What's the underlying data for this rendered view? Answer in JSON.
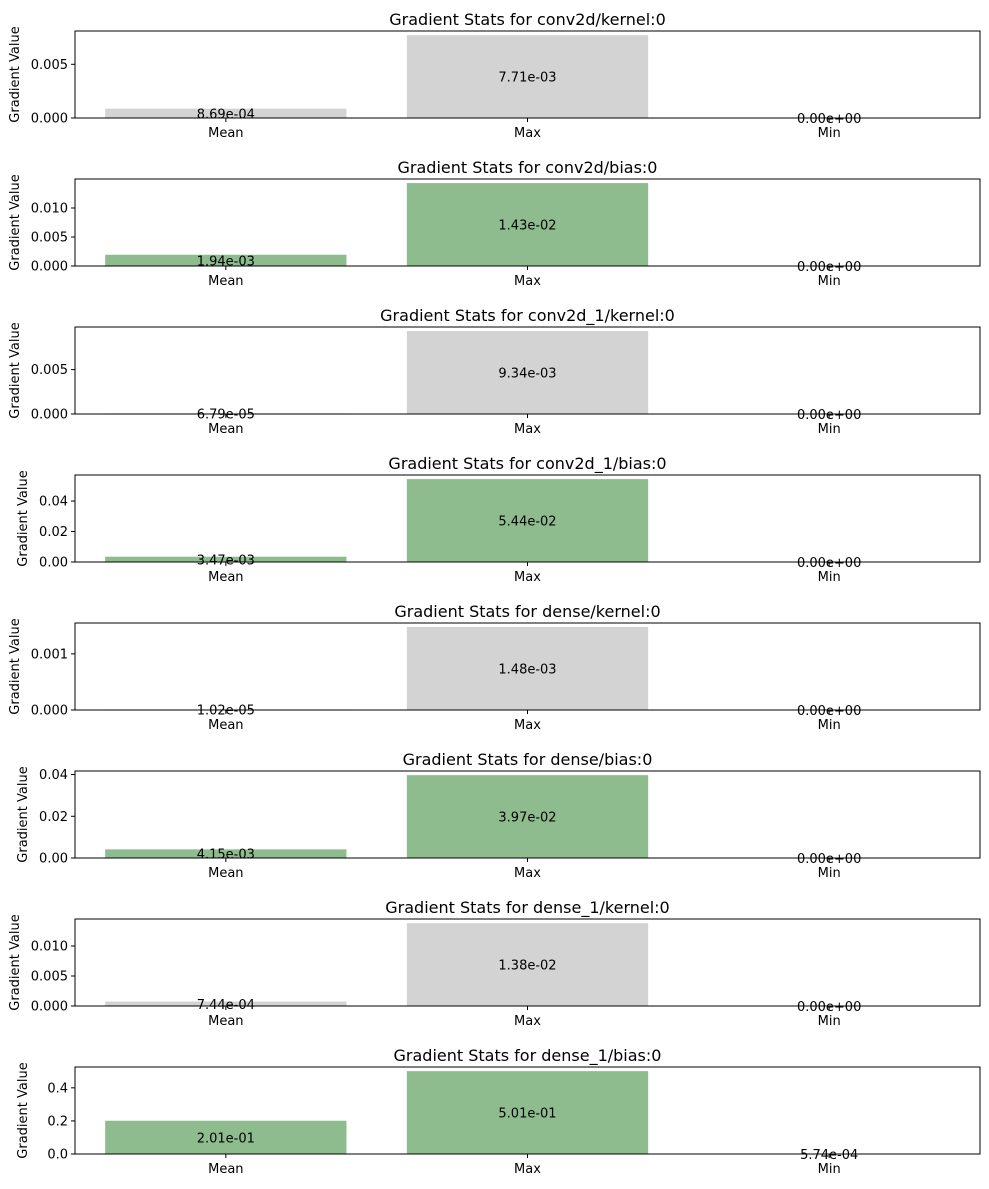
{
  "chart_data": [
    {
      "type": "bar",
      "title": "Gradient Stats for conv2d/kernel:0",
      "ylabel": "Gradient Value",
      "categories": [
        "Mean",
        "Max",
        "Min"
      ],
      "values": [
        0.000869,
        0.00771,
        0.0
      ],
      "value_labels": [
        "8.69e-04",
        "7.71e-03",
        "0.00e+00"
      ],
      "bar_color": "#d3d3d3",
      "yticks": [
        0.0,
        0.005
      ],
      "ytick_labels": [
        "0.000",
        "0.005"
      ],
      "ylim": [
        0,
        0.0081
      ]
    },
    {
      "type": "bar",
      "title": "Gradient Stats for conv2d/bias:0",
      "ylabel": "Gradient Value",
      "categories": [
        "Mean",
        "Max",
        "Min"
      ],
      "values": [
        0.00194,
        0.0143,
        0.0
      ],
      "value_labels": [
        "1.94e-03",
        "1.43e-02",
        "0.00e+00"
      ],
      "bar_color": "#8fbc8f",
      "yticks": [
        0.0,
        0.005,
        0.01
      ],
      "ytick_labels": [
        "0.000",
        "0.005",
        "0.010"
      ],
      "ylim": [
        0,
        0.015
      ]
    },
    {
      "type": "bar",
      "title": "Gradient Stats for conv2d_1/kernel:0",
      "ylabel": "Gradient Value",
      "categories": [
        "Mean",
        "Max",
        "Min"
      ],
      "values": [
        6.79e-05,
        0.00934,
        0.0
      ],
      "value_labels": [
        "6.79e-05",
        "9.34e-03",
        "0.00e+00"
      ],
      "bar_color": "#d3d3d3",
      "yticks": [
        0.0,
        0.005
      ],
      "ytick_labels": [
        "0.000",
        "0.005"
      ],
      "ylim": [
        0,
        0.0098
      ]
    },
    {
      "type": "bar",
      "title": "Gradient Stats for conv2d_1/bias:0",
      "ylabel": "Gradient Value",
      "categories": [
        "Mean",
        "Max",
        "Min"
      ],
      "values": [
        0.00347,
        0.0544,
        0.0
      ],
      "value_labels": [
        "3.47e-03",
        "5.44e-02",
        "0.00e+00"
      ],
      "bar_color": "#8fbc8f",
      "yticks": [
        0.0,
        0.02,
        0.04
      ],
      "ytick_labels": [
        "0.00",
        "0.02",
        "0.04"
      ],
      "ylim": [
        0,
        0.0571
      ]
    },
    {
      "type": "bar",
      "title": "Gradient Stats for dense/kernel:0",
      "ylabel": "Gradient Value",
      "categories": [
        "Mean",
        "Max",
        "Min"
      ],
      "values": [
        1.02e-05,
        0.00148,
        0.0
      ],
      "value_labels": [
        "1.02e-05",
        "1.48e-03",
        "0.00e+00"
      ],
      "bar_color": "#d3d3d3",
      "yticks": [
        0.0,
        0.001
      ],
      "ytick_labels": [
        "0.000",
        "0.001"
      ],
      "ylim": [
        0,
        0.00155
      ]
    },
    {
      "type": "bar",
      "title": "Gradient Stats for dense/bias:0",
      "ylabel": "Gradient Value",
      "categories": [
        "Mean",
        "Max",
        "Min"
      ],
      "values": [
        0.00415,
        0.0397,
        0.0
      ],
      "value_labels": [
        "4.15e-03",
        "3.97e-02",
        "0.00e+00"
      ],
      "bar_color": "#8fbc8f",
      "yticks": [
        0.0,
        0.02,
        0.04
      ],
      "ytick_labels": [
        "0.00",
        "0.02",
        "0.04"
      ],
      "ylim": [
        0,
        0.0417
      ]
    },
    {
      "type": "bar",
      "title": "Gradient Stats for dense_1/kernel:0",
      "ylabel": "Gradient Value",
      "categories": [
        "Mean",
        "Max",
        "Min"
      ],
      "values": [
        0.000744,
        0.0138,
        0.0
      ],
      "value_labels": [
        "7.44e-04",
        "1.38e-02",
        "0.00e+00"
      ],
      "bar_color": "#d3d3d3",
      "yticks": [
        0.0,
        0.005,
        0.01
      ],
      "ytick_labels": [
        "0.000",
        "0.005",
        "0.010"
      ],
      "ylim": [
        0,
        0.0145
      ]
    },
    {
      "type": "bar",
      "title": "Gradient Stats for dense_1/bias:0",
      "ylabel": "Gradient Value",
      "categories": [
        "Mean",
        "Max",
        "Min"
      ],
      "values": [
        0.201,
        0.501,
        0.000574
      ],
      "value_labels": [
        "2.01e-01",
        "5.01e-01",
        "5.74e-04"
      ],
      "bar_color": "#8fbc8f",
      "yticks": [
        0.0,
        0.2,
        0.4
      ],
      "ytick_labels": [
        "0.0",
        "0.2",
        "0.4"
      ],
      "ylim": [
        0,
        0.526
      ]
    }
  ]
}
